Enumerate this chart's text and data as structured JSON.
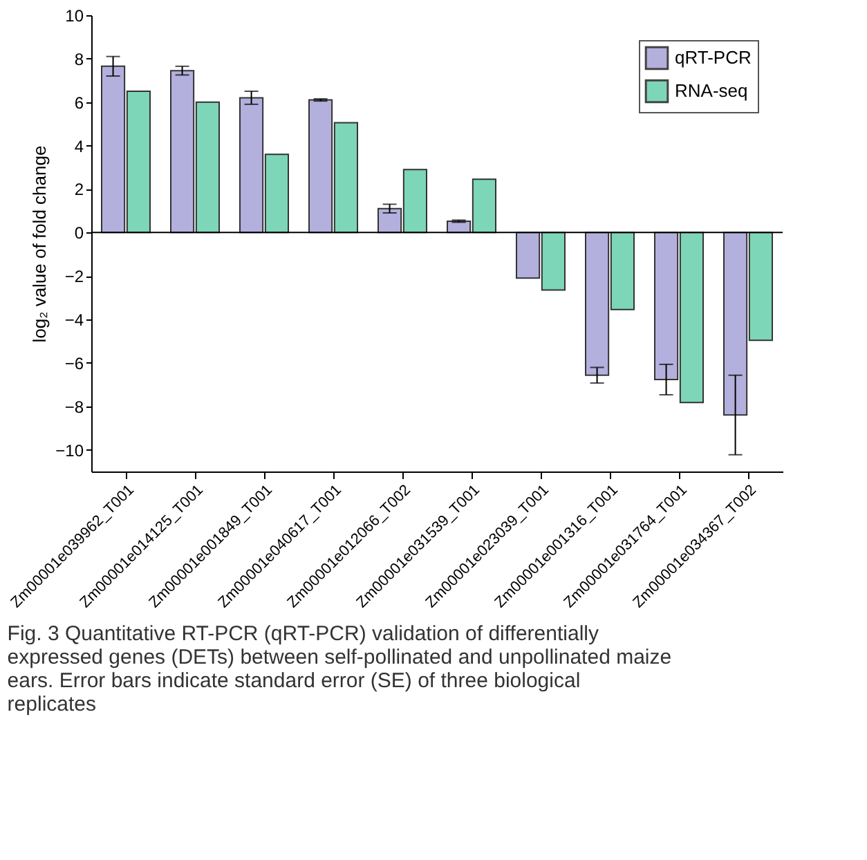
{
  "chart_data": {
    "type": "bar",
    "ylabel": "log₂ value of fold change",
    "categories": [
      "Zm00001e039962_T001",
      "Zm00001e014125_T001",
      "Zm00001e001849_T001",
      "Zm00001e040617_T001",
      "Zm00001e012066_T002",
      "Zm00001e031539_T001",
      "Zm00001e023039_T001",
      "Zm00001e001316_T001",
      "Zm00001e031764_T001",
      "Zm00001e034367_T002"
    ],
    "series": [
      {
        "name": "qRT-PCR",
        "color": "#b3b0dd",
        "values": [
          7.65,
          7.45,
          6.2,
          6.1,
          1.1,
          0.52,
          -2.1,
          -6.57,
          -6.77,
          -8.4
        ],
        "errors": [
          0.45,
          0.2,
          0.3,
          0.05,
          0.2,
          0.05,
          null,
          0.36,
          0.7,
          1.83
        ]
      },
      {
        "name": "RNA-seq",
        "color": "#7dd6b8",
        "values": [
          6.5,
          6.0,
          3.6,
          5.05,
          2.9,
          2.45,
          -2.65,
          -3.55,
          -7.83,
          -4.96
        ]
      }
    ],
    "ylim": [
      -11,
      10
    ],
    "yticks": [
      -10,
      -8,
      -6,
      -4,
      -2,
      0,
      2,
      4,
      6,
      8,
      10
    ],
    "ref_lines": [
      {
        "axis": "y",
        "value": 0
      }
    ],
    "legend": "top right",
    "grid": false,
    "annotations": [
      "Fig. 3 Quantitative RT-PCR (qRT-PCR) validation of differentially expressed genes (DETs) between self-pollinated and unpollinated maize ears. Error bars indicate standard error (SE) of three biological replicates"
    ]
  }
}
